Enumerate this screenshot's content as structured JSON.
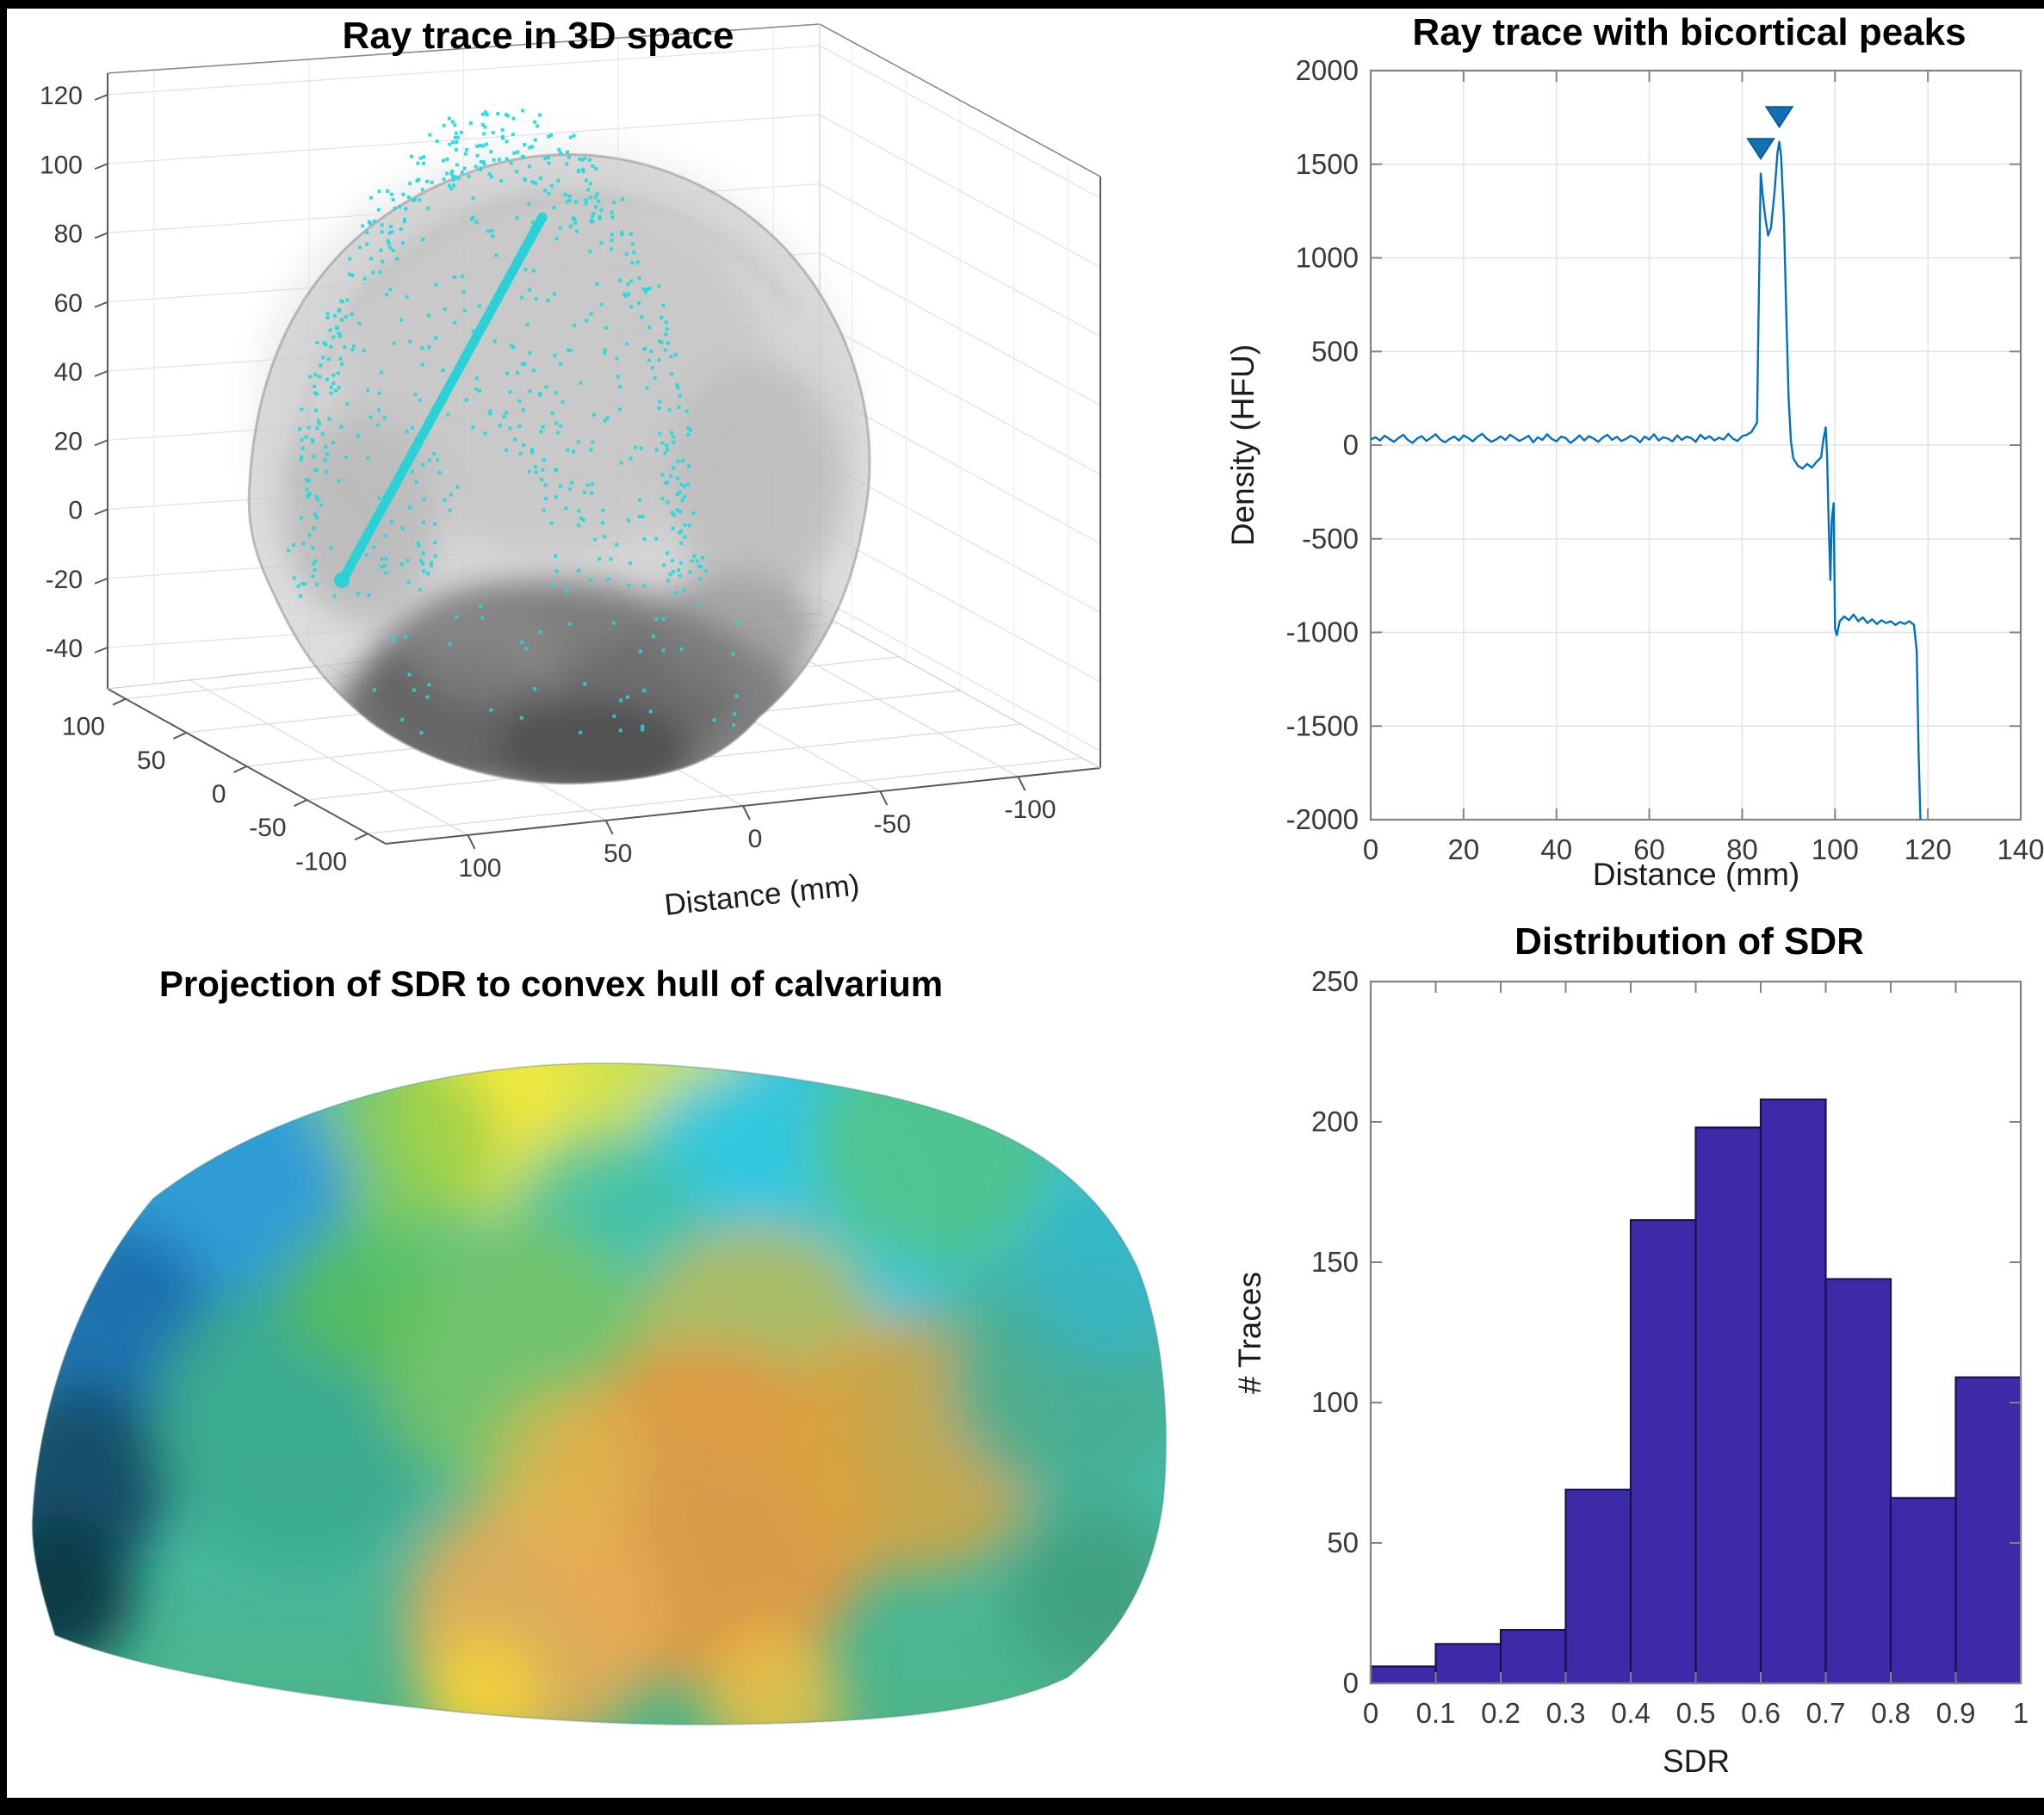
{
  "figure": {
    "background": "#000000",
    "canvas": "#ffffff",
    "accent_cyan": "#1ddcdc",
    "matlab_blue": "#0072bd"
  },
  "chart_data": [
    {
      "id": "ray3d",
      "type": "scatter3d",
      "title": "Ray trace in 3D space",
      "xlabel": "Distance (mm)",
      "x_ticks": [
        "100",
        "50",
        "0",
        "-50",
        "-100"
      ],
      "y_ticks": [
        "100",
        "50",
        "0",
        "-50",
        "-100"
      ],
      "z_ticks": [
        "120",
        "100",
        "80",
        "60",
        "40",
        "20",
        "0",
        "-20",
        "-40"
      ],
      "grid": true,
      "dot_count": 660,
      "base_dot_count": 45,
      "dot_color": "#1ddcdc",
      "ray_color": "#2ad2d6",
      "skull_color": "#c6c6c6",
      "skull_shading": [
        {
          "x": 640,
          "y": 795,
          "rx": 215,
          "ry": 120,
          "c": "#707070",
          "o": 0.85
        },
        {
          "x": 515,
          "y": 835,
          "rx": 130,
          "ry": 80,
          "c": "#5e5e5e",
          "o": 0.8
        },
        {
          "x": 785,
          "y": 825,
          "rx": 150,
          "ry": 92,
          "c": "#6b6b6b",
          "o": 0.8
        },
        {
          "x": 690,
          "y": 872,
          "rx": 110,
          "ry": 58,
          "c": "#4e4e4e",
          "o": 0.85
        },
        {
          "x": 560,
          "y": 755,
          "rx": 85,
          "ry": 60,
          "c": "#8a8a8a",
          "o": 0.6
        },
        {
          "x": 855,
          "y": 735,
          "rx": 95,
          "ry": 72,
          "c": "#828282",
          "o": 0.6
        },
        {
          "x": 420,
          "y": 600,
          "rx": 90,
          "ry": 120,
          "c": "#a6a6a6",
          "o": 0.5
        },
        {
          "x": 880,
          "y": 560,
          "rx": 100,
          "ry": 140,
          "c": "#ababab",
          "o": 0.5
        },
        {
          "x": 640,
          "y": 430,
          "rx": 250,
          "ry": 210,
          "c": "#bdbdbd",
          "o": 0.5
        }
      ]
    },
    {
      "id": "raytrace",
      "type": "line",
      "title": "Ray trace with bicortical peaks",
      "xlabel": "Distance (mm)",
      "ylabel": "Density (HFU)",
      "xlim": [
        0,
        140
      ],
      "ylim": [
        -2000,
        2000
      ],
      "x_ticks": [
        0,
        20,
        40,
        60,
        80,
        100,
        120,
        140
      ],
      "y_ticks": [
        2000,
        1500,
        1000,
        500,
        0,
        -500,
        -1000,
        -1500,
        -2000
      ],
      "grid": true,
      "line_color": "#0072bd",
      "marker_color": "#1270b8",
      "marker_edge": "#0d5c94",
      "peak_markers": [
        [
          84,
          1530
        ],
        [
          88,
          1700
        ]
      ],
      "baseline": {
        "x_start": 0,
        "x_step": 1,
        "y": [
          30,
          42,
          25,
          50,
          33,
          18,
          38,
          55,
          28,
          12,
          35,
          48,
          22,
          40,
          58,
          30,
          15,
          33,
          46,
          25,
          52,
          38,
          20,
          44,
          60,
          35,
          18,
          30,
          47,
          28,
          55,
          40,
          22,
          35,
          50,
          15,
          42,
          28,
          58,
          33,
          20,
          45,
          38,
          12,
          30,
          52,
          25,
          48,
          35,
          18,
          40,
          55,
          28,
          44,
          22,
          33,
          50,
          38,
          15,
          46,
          30,
          58,
          25,
          42,
          35,
          20,
          52,
          28,
          45,
          38,
          18,
          55,
          33,
          48,
          25,
          40,
          30,
          60,
          35,
          22,
          48,
          55,
          70
        ]
      },
      "profile": [
        [
          83.2,
          120
        ],
        [
          83.6,
          800
        ],
        [
          84,
          1450
        ],
        [
          84.4,
          1340
        ],
        [
          85,
          1210
        ],
        [
          85.6,
          1120
        ],
        [
          86.2,
          1160
        ],
        [
          87,
          1360
        ],
        [
          87.6,
          1560
        ],
        [
          88,
          1620
        ],
        [
          88.4,
          1540
        ],
        [
          89,
          1200
        ],
        [
          89.5,
          700
        ],
        [
          90,
          250
        ],
        [
          90.5,
          20
        ],
        [
          91,
          -70
        ],
        [
          92,
          -110
        ],
        [
          93,
          -125
        ],
        [
          94,
          -100
        ],
        [
          95,
          -120
        ],
        [
          96,
          -90
        ],
        [
          97,
          -65
        ],
        [
          97.5,
          30
        ],
        [
          98,
          95
        ],
        [
          98.3,
          -60
        ],
        [
          98.6,
          -380
        ],
        [
          99,
          -720
        ],
        [
          99.3,
          -400
        ],
        [
          99.7,
          -310
        ],
        [
          100,
          -980
        ],
        [
          100.4,
          -1015
        ],
        [
          101,
          -940
        ],
        [
          102,
          -915
        ],
        [
          103,
          -935
        ],
        [
          104,
          -905
        ],
        [
          105,
          -940
        ],
        [
          106,
          -920
        ],
        [
          107,
          -950
        ],
        [
          108,
          -930
        ],
        [
          109,
          -955
        ],
        [
          110,
          -935
        ],
        [
          111,
          -950
        ],
        [
          112,
          -940
        ],
        [
          113,
          -960
        ],
        [
          114,
          -945
        ],
        [
          115,
          -955
        ],
        [
          116,
          -940
        ],
        [
          117,
          -960
        ],
        [
          117.6,
          -1100
        ],
        [
          118,
          -1650
        ],
        [
          118.4,
          -2000
        ]
      ]
    },
    {
      "id": "hull",
      "type": "surface",
      "title": "Projection of SDR to convex hull of calvarium",
      "colormap": "parula-like SDR map (blue=low, yellow/orange=high)",
      "base_top": "#38c3d8",
      "base_bottom": "#4db487",
      "regions": [
        {
          "x": 585,
          "y": 1285,
          "r": 130,
          "c": "#f2e93c",
          "o": 1
        },
        {
          "x": 760,
          "y": 1255,
          "r": 120,
          "c": "#d8e34a",
          "o": 0.9
        },
        {
          "x": 470,
          "y": 1330,
          "r": 110,
          "c": "#8fcc4e",
          "o": 0.8
        },
        {
          "x": 900,
          "y": 1420,
          "r": 190,
          "c": "#2ec6e2",
          "o": 0.95
        },
        {
          "x": 1080,
          "y": 1330,
          "r": 140,
          "c": "#52c48c",
          "o": 0.9
        },
        {
          "x": 700,
          "y": 1430,
          "r": 120,
          "c": "#49c0a0",
          "o": 0.8
        },
        {
          "x": 260,
          "y": 1400,
          "r": 150,
          "c": "#2f9ad6",
          "o": 0.95
        },
        {
          "x": 130,
          "y": 1540,
          "r": 120,
          "c": "#1f6fae",
          "o": 0.95
        },
        {
          "x": 90,
          "y": 1720,
          "r": 110,
          "c": "#14506b",
          "o": 1
        },
        {
          "x": 65,
          "y": 1850,
          "r": 90,
          "c": "#0d3a46",
          "o": 1
        },
        {
          "x": 350,
          "y": 1650,
          "r": 170,
          "c": "#3baa8e",
          "o": 0.9
        },
        {
          "x": 600,
          "y": 1580,
          "r": 160,
          "c": "#7ac463",
          "o": 0.85
        },
        {
          "x": 880,
          "y": 1560,
          "r": 140,
          "c": "#c8b94a",
          "o": 0.8
        },
        {
          "x": 820,
          "y": 1760,
          "r": 200,
          "c": "#e09a43",
          "o": 0.95
        },
        {
          "x": 620,
          "y": 1880,
          "r": 150,
          "c": "#e8ac55",
          "o": 0.9
        },
        {
          "x": 1060,
          "y": 1680,
          "r": 150,
          "c": "#d9a33f",
          "o": 0.85
        },
        {
          "x": 1240,
          "y": 1600,
          "r": 140,
          "c": "#49ae92",
          "o": 0.9
        },
        {
          "x": 1290,
          "y": 1480,
          "r": 100,
          "c": "#35b5c9",
          "o": 0.8
        },
        {
          "x": 560,
          "y": 1965,
          "r": 70,
          "c": "#f2d23c",
          "o": 0.9
        },
        {
          "x": 900,
          "y": 1975,
          "r": 80,
          "c": "#efc046",
          "o": 0.85
        },
        {
          "x": 1270,
          "y": 1850,
          "r": 100,
          "c": "#3e9e7e",
          "o": 0.85
        },
        {
          "x": 420,
          "y": 1500,
          "r": 90,
          "c": "#5ec050",
          "o": 0.7
        },
        {
          "x": 660,
          "y": 1700,
          "r": 90,
          "c": "#e0b84e",
          "o": 0.7
        }
      ]
    },
    {
      "id": "sdr_hist",
      "type": "bar",
      "title": "Distribution of SDR",
      "xlabel": "SDR",
      "ylabel": "# Traces",
      "categories": [
        "0-0.1",
        "0.1-0.2",
        "0.2-0.3",
        "0.3-0.4",
        "0.4-0.5",
        "0.5-0.6",
        "0.6-0.7",
        "0.7-0.8",
        "0.8-0.9",
        "0.9-1.0"
      ],
      "values": [
        6,
        14,
        19,
        69,
        165,
        198,
        208,
        144,
        66,
        109
      ],
      "bin_edges": [
        0,
        0.1,
        0.2,
        0.3,
        0.4,
        0.5,
        0.6,
        0.7,
        0.8,
        0.9,
        1
      ],
      "x_ticks": [
        "0",
        "0.1",
        "0.2",
        "0.3",
        "0.4",
        "0.5",
        "0.6",
        "0.7",
        "0.8",
        "0.9",
        "1"
      ],
      "y_ticks": [
        0,
        50,
        100,
        150,
        200,
        250
      ],
      "ylim": [
        0,
        250
      ],
      "grid": false,
      "bar_color": "#3e2aa8",
      "bar_edge": "#141450"
    }
  ]
}
